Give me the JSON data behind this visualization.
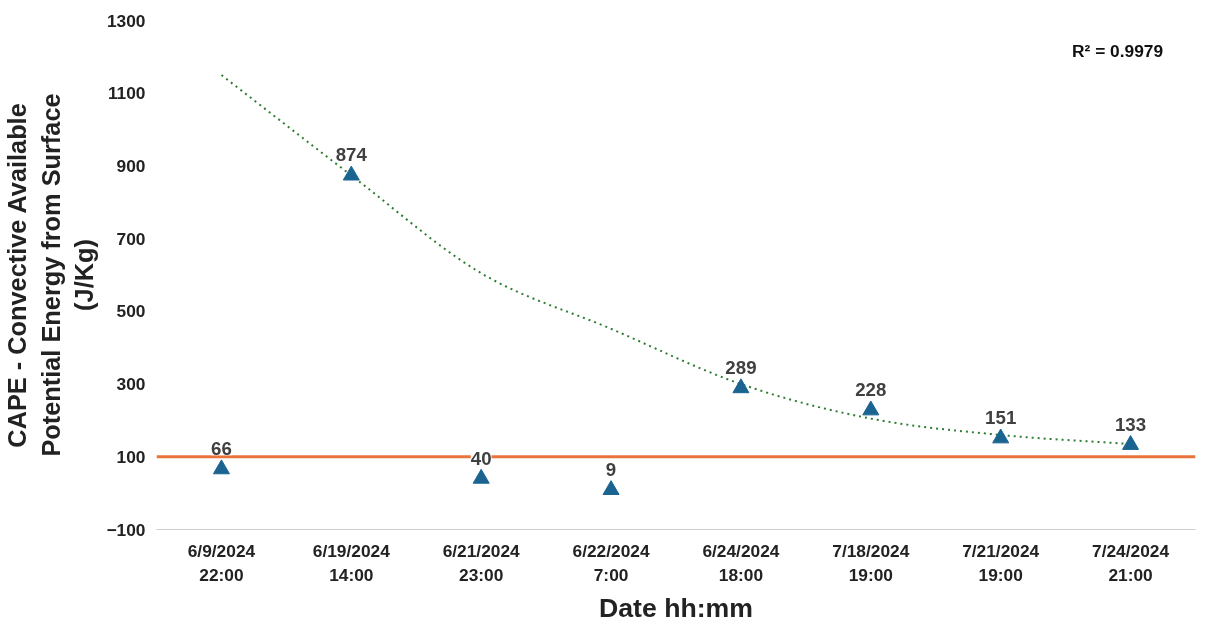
{
  "chart_data": {
    "type": "scatter",
    "xlabel": "Date hh:mm",
    "ylabel": "CAPE - Convective Available\nPotential Energy from Surface\n(J/Kg)",
    "categories": [
      "6/9/2024\n22:00",
      "6/19/2024\n14:00",
      "6/21/2024\n23:00",
      "6/22/2024\n7:00",
      "6/24/2024\n18:00",
      "7/18/2024\n19:00",
      "7/21/2024\n19:00",
      "7/24/2024\n21:00"
    ],
    "series": [
      {
        "color": "#1b6491",
        "marker": "triangle",
        "values": [
          66,
          874,
          40,
          9,
          289,
          228,
          151,
          133
        ],
        "value_labels": [
          "66",
          "874",
          "40",
          "9",
          "289",
          "228",
          "151",
          "133"
        ]
      },
      {
        "type": "line",
        "color": "#2e7d32",
        "line_style": "dotted",
        "marker": "none",
        "values": [
          1150,
          874,
          605,
          452,
          300,
          205,
          160,
          135
        ]
      }
    ],
    "ref_lines": [
      {
        "axis": "y",
        "value": 100,
        "color": "#e8743b"
      }
    ],
    "annotations": [
      "R² = 0.9979"
    ],
    "ylim": [
      -100,
      1300
    ],
    "yticks": [
      -100,
      100,
      300,
      500,
      700,
      900,
      1100,
      1300
    ],
    "grid": false
  }
}
